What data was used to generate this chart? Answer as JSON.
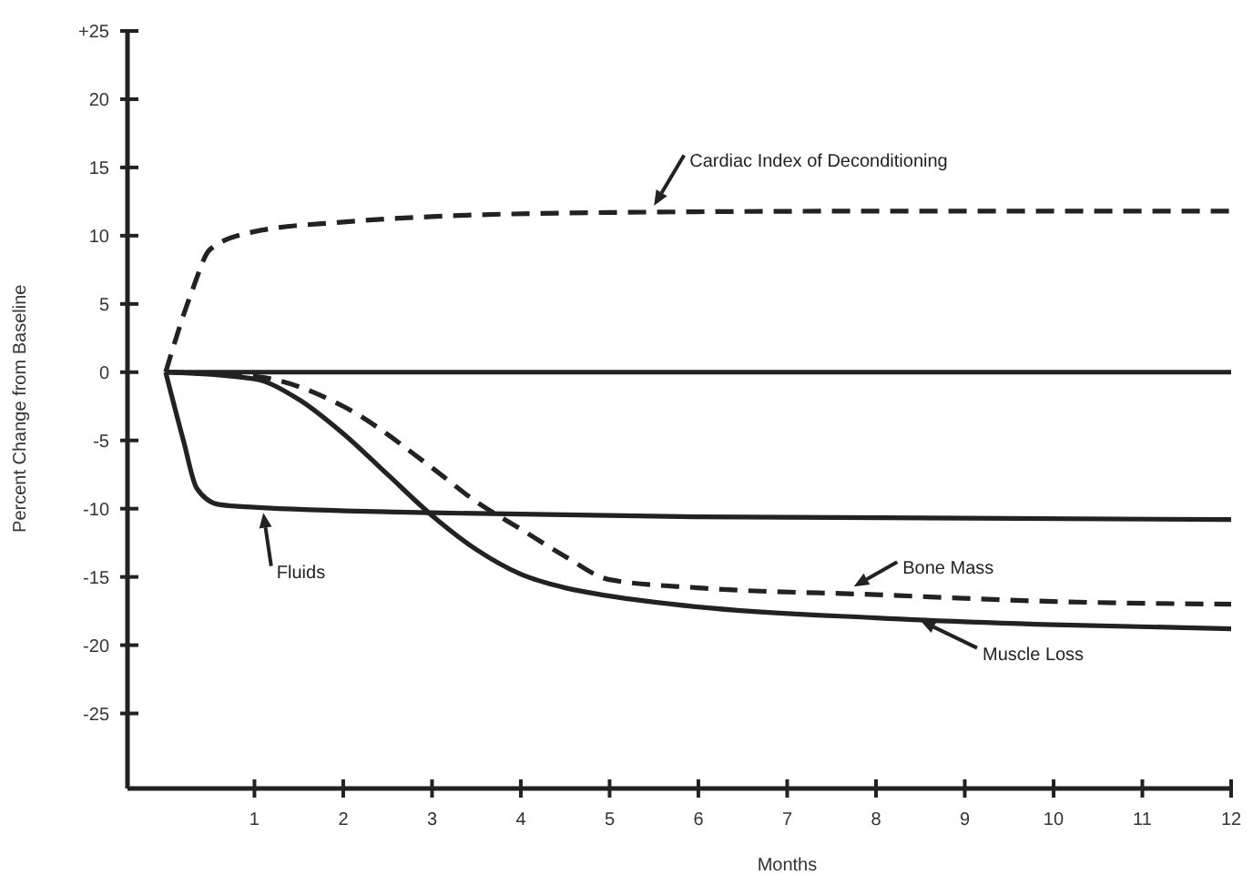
{
  "chart_data": {
    "type": "line",
    "xlabel": "Months",
    "ylabel": "Percent Change from Baseline",
    "xlim": [
      -0.43,
      12
    ],
    "ylim": [
      -30.5,
      25
    ],
    "xticks": [
      1,
      2,
      3,
      4,
      5,
      6,
      7,
      8,
      9,
      10,
      11,
      12
    ],
    "yticks": [
      {
        "value": 25,
        "label": "+25"
      },
      20,
      15,
      10,
      5,
      0,
      -5,
      -10,
      -15,
      -20,
      -25
    ],
    "grid": false,
    "marker": "none",
    "ref_lines": [
      {
        "axis": "y",
        "value": 0,
        "color": "#222222",
        "line_style": "solid"
      }
    ],
    "series": [
      {
        "name": "Cardiac Index of Deconditioning",
        "color": "#222222",
        "line_style": "dashed",
        "x": [
          0,
          0.3,
          0.5,
          1,
          2,
          3,
          5,
          8,
          12
        ],
        "values": [
          0,
          6,
          9,
          10.3,
          11,
          11.4,
          11.7,
          11.8,
          11.8
        ]
      },
      {
        "name": "Fluids",
        "color": "#222222",
        "line_style": "solid",
        "x": [
          0,
          0.2,
          0.35,
          0.6,
          1,
          3,
          6,
          12
        ],
        "values": [
          0,
          -5,
          -8.5,
          -9.7,
          -9.9,
          -10.3,
          -10.6,
          -10.8
        ]
      },
      {
        "name": "Bone Mass",
        "color": "#222222",
        "line_style": "dashed",
        "x": [
          0,
          1,
          2,
          3,
          3.5,
          4,
          4.5,
          5,
          6,
          8,
          10,
          12
        ],
        "values": [
          0,
          -0.3,
          -2.5,
          -7,
          -9.5,
          -11.5,
          -13.5,
          -15.2,
          -15.8,
          -16.3,
          -16.8,
          -17
        ]
      },
      {
        "name": "Muscle Loss",
        "color": "#222222",
        "line_style": "solid",
        "x": [
          0,
          1,
          1.5,
          2,
          2.5,
          3,
          3.5,
          4,
          4.5,
          5,
          6,
          8,
          10,
          12
        ],
        "values": [
          0,
          -0.5,
          -2,
          -4.5,
          -7.5,
          -10.5,
          -13,
          -14.8,
          -15.8,
          -16.4,
          -17.2,
          -18,
          -18.5,
          -18.8
        ]
      }
    ]
  }
}
